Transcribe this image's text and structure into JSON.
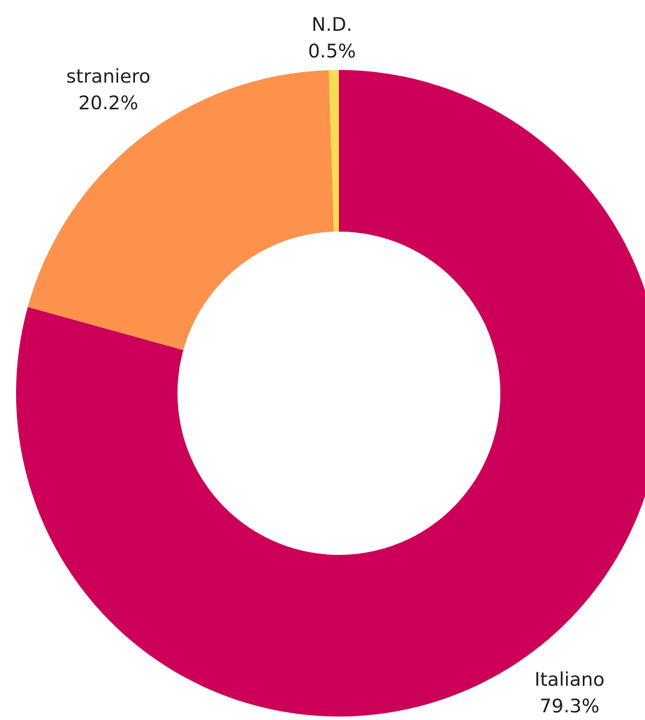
{
  "chart_data": {
    "type": "pie",
    "style": "donut",
    "slices": [
      {
        "name": "Italiano",
        "value": 79.3,
        "label_pct": "79.3%",
        "color": "#CC0058"
      },
      {
        "name": "straniero",
        "value": 20.2,
        "label_pct": "20.2%",
        "color": "#FD924D"
      },
      {
        "name": "N.D.",
        "value": 0.5,
        "label_pct": "0.5%",
        "color": "#F8DD50"
      }
    ],
    "legend": "none",
    "labels": "outside, name above percentage"
  }
}
